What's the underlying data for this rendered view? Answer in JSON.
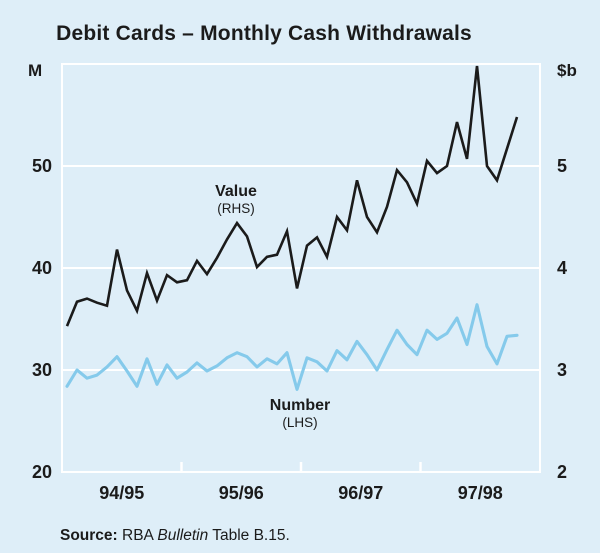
{
  "colors": {
    "background": "#DEEEF8",
    "grid": "#FFFFFF",
    "text": "#1B1B1B",
    "value_line": "#1B1B1B",
    "number_line": "#85CAEB"
  },
  "source": {
    "label": "Source:",
    "pre_italic": " RBA ",
    "italic": "Bulletin",
    "post_italic": " Table B.15."
  },
  "chart_data": {
    "type": "line",
    "title": "Debit Cards – Monthly Cash Withdrawals",
    "frequency_note": "monthly observations across financial years shown on x-axis",
    "grid": "horizontal white gridlines on light-blue panel",
    "legend_position": "in-plot text annotations",
    "left_axis": {
      "unit": "M",
      "min": 20,
      "max": 60,
      "ticks": [
        50,
        40,
        30,
        20
      ]
    },
    "right_axis": {
      "unit": "$b",
      "min": 2,
      "max": 6,
      "ticks": [
        5,
        4,
        3,
        2
      ]
    },
    "x_axis": {
      "labels": [
        "94/95",
        "95/96",
        "96/97",
        "97/98"
      ],
      "tick_style": "white ticks at financial-year boundaries, labels centred within each year"
    },
    "series": [
      {
        "name": "Number",
        "label": "Number",
        "sublabel": "(LHS)",
        "axis": "left",
        "color": "#85CAEB",
        "values": [
          28.4,
          30.0,
          29.2,
          29.5,
          30.3,
          31.3,
          29.9,
          28.4,
          31.1,
          28.6,
          30.5,
          29.2,
          29.8,
          30.7,
          29.9,
          30.4,
          31.2,
          31.7,
          31.3,
          30.3,
          31.1,
          30.6,
          31.7,
          28.1,
          31.2,
          30.8,
          29.9,
          31.9,
          31.0,
          32.8,
          31.5,
          30.0,
          32.0,
          33.9,
          32.5,
          31.5,
          33.9,
          33.0,
          33.6,
          35.1,
          32.5,
          36.4,
          32.3,
          30.6,
          33.3,
          33.4
        ]
      },
      {
        "name": "Value",
        "label": "Value",
        "sublabel": "(RHS)",
        "axis": "right",
        "color": "#1B1B1B",
        "values": [
          3.43,
          3.67,
          3.7,
          3.66,
          3.63,
          4.18,
          3.78,
          3.58,
          3.95,
          3.68,
          3.93,
          3.86,
          3.88,
          4.07,
          3.94,
          4.1,
          4.28,
          4.44,
          4.31,
          4.01,
          4.11,
          4.13,
          4.36,
          3.8,
          4.22,
          4.3,
          4.11,
          4.5,
          4.37,
          4.86,
          4.5,
          4.35,
          4.6,
          4.96,
          4.84,
          4.63,
          5.05,
          4.93,
          5.0,
          5.43,
          5.07,
          5.98,
          5.0,
          4.86,
          5.17,
          5.48
        ]
      }
    ]
  }
}
